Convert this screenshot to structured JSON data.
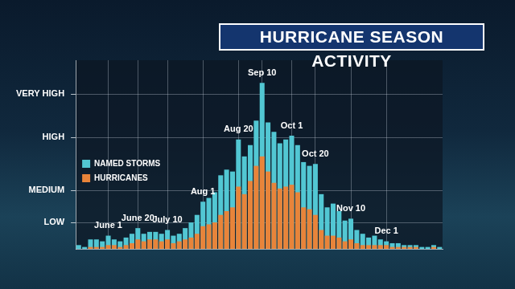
{
  "chart_data": {
    "type": "bar",
    "title": "HURRICANE SEASON ACTIVITY",
    "categories": [
      null,
      null,
      null,
      null,
      null,
      "June 1",
      null,
      null,
      null,
      null,
      "June 20",
      null,
      null,
      null,
      null,
      "July 10",
      null,
      null,
      null,
      null,
      null,
      "Aug 1",
      null,
      null,
      null,
      null,
      null,
      "Aug 20",
      null,
      null,
      null,
      "Sep 10",
      null,
      null,
      null,
      null,
      "Oct 1",
      null,
      null,
      null,
      "Oct 20",
      null,
      null,
      null,
      null,
      null,
      "Nov 10",
      null,
      null,
      null,
      null,
      null,
      "Dec 1",
      null,
      null,
      null,
      null,
      null,
      null,
      null,
      null,
      null
    ],
    "series": [
      {
        "name": "NAMED STORMS",
        "color": "#52c7d3",
        "values": [
          2,
          1,
          5,
          5,
          4,
          7,
          5,
          4,
          6,
          8,
          11,
          8,
          9,
          9,
          8,
          10,
          7,
          8,
          11,
          14,
          18,
          25,
          27,
          30,
          39,
          42,
          41,
          58,
          49,
          55,
          68,
          88,
          67,
          62,
          56,
          58,
          60,
          55,
          46,
          44,
          45,
          29,
          22,
          24,
          20,
          15,
          16,
          10,
          8,
          6,
          7,
          5,
          4,
          3,
          3,
          2,
          2,
          2,
          1,
          1,
          2,
          1
        ]
      },
      {
        "name": "HURRICANES",
        "color": "#e8843a",
        "values": [
          0,
          0,
          1,
          1,
          1,
          2,
          2,
          1,
          2,
          3,
          5,
          4,
          5,
          5,
          4,
          5,
          3,
          4,
          5,
          6,
          8,
          12,
          13,
          14,
          18,
          20,
          22,
          33,
          29,
          36,
          44,
          49,
          41,
          35,
          32,
          33,
          34,
          30,
          22,
          21,
          18,
          10,
          7,
          7,
          6,
          4,
          5,
          3,
          2,
          2,
          2,
          2,
          2,
          1,
          1,
          1,
          1,
          1,
          0,
          0,
          1,
          0
        ]
      }
    ],
    "ylim": [
      0,
      100
    ],
    "yticks": [
      {
        "value": 14,
        "label": "LOW"
      },
      {
        "value": 31,
        "label": "MEDIUM"
      },
      {
        "value": 59,
        "label": "HIGH"
      },
      {
        "value": 82,
        "label": "VERY HIGH"
      }
    ],
    "stacked": false,
    "grid": true,
    "legend": "top right",
    "tick_labels": "y"
  }
}
